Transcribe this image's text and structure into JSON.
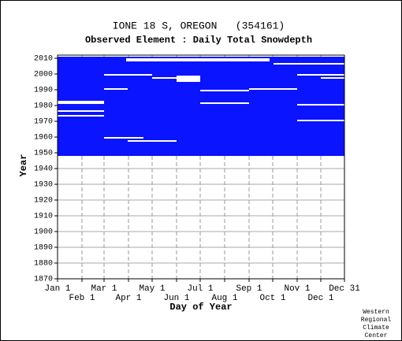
{
  "chart_data": {
    "type": "availability",
    "title": "IONE 18 S, OREGON   (354161)",
    "subtitle": "Observed Element : Daily Total Snowdepth",
    "x_label": "Day of Year",
    "y_label": "Year",
    "credit": [
      "Western",
      "Regional",
      "Climate",
      "Center"
    ],
    "xlim": [
      1,
      365
    ],
    "ylim": [
      1870,
      2012
    ],
    "xticks": [
      {
        "value": 1,
        "label": "Jan 1"
      },
      {
        "value": 32,
        "label": "Feb 1"
      },
      {
        "value": 60,
        "label": "Mar 1"
      },
      {
        "value": 91,
        "label": "Apr 1"
      },
      {
        "value": 121,
        "label": "May 1"
      },
      {
        "value": 152,
        "label": "Jun 1"
      },
      {
        "value": 182,
        "label": "Jul 1"
      },
      {
        "value": 213,
        "label": "Aug 1"
      },
      {
        "value": 244,
        "label": "Sep 1"
      },
      {
        "value": 274,
        "label": "Oct 1"
      },
      {
        "value": 305,
        "label": "Nov 1"
      },
      {
        "value": 335,
        "label": "Dec 1"
      },
      {
        "value": 365,
        "label": "Dec 31"
      }
    ],
    "yticks": [
      1870,
      1880,
      1890,
      1900,
      1910,
      1920,
      1930,
      1940,
      1950,
      1960,
      1970,
      1980,
      1990,
      2000,
      2010
    ],
    "color": "#0a14ff",
    "observed": [
      [
        1,
        365,
        1948,
        2010
      ]
    ],
    "missing": [
      [
        88,
        270,
        2008,
        2009
      ],
      [
        275,
        365,
        2006,
        2006
      ],
      [
        152,
        182,
        1995,
        1998
      ],
      [
        1,
        60,
        1981,
        1982
      ],
      [
        1,
        60,
        1976,
        1976
      ],
      [
        1,
        60,
        1973,
        1973
      ],
      [
        182,
        244,
        1989,
        1989
      ],
      [
        244,
        305,
        1990,
        1990
      ],
      [
        305,
        365,
        1980,
        1980
      ],
      [
        305,
        365,
        1970,
        1970
      ],
      [
        182,
        244,
        1981,
        1981
      ],
      [
        121,
        152,
        1997,
        1997
      ],
      [
        60,
        121,
        1999,
        1999
      ],
      [
        305,
        365,
        1999,
        1999
      ],
      [
        335,
        365,
        1997,
        1997
      ],
      [
        60,
        90,
        1990,
        1990
      ],
      [
        90,
        152,
        1957,
        1957
      ],
      [
        60,
        110,
        1959,
        1959
      ]
    ]
  }
}
